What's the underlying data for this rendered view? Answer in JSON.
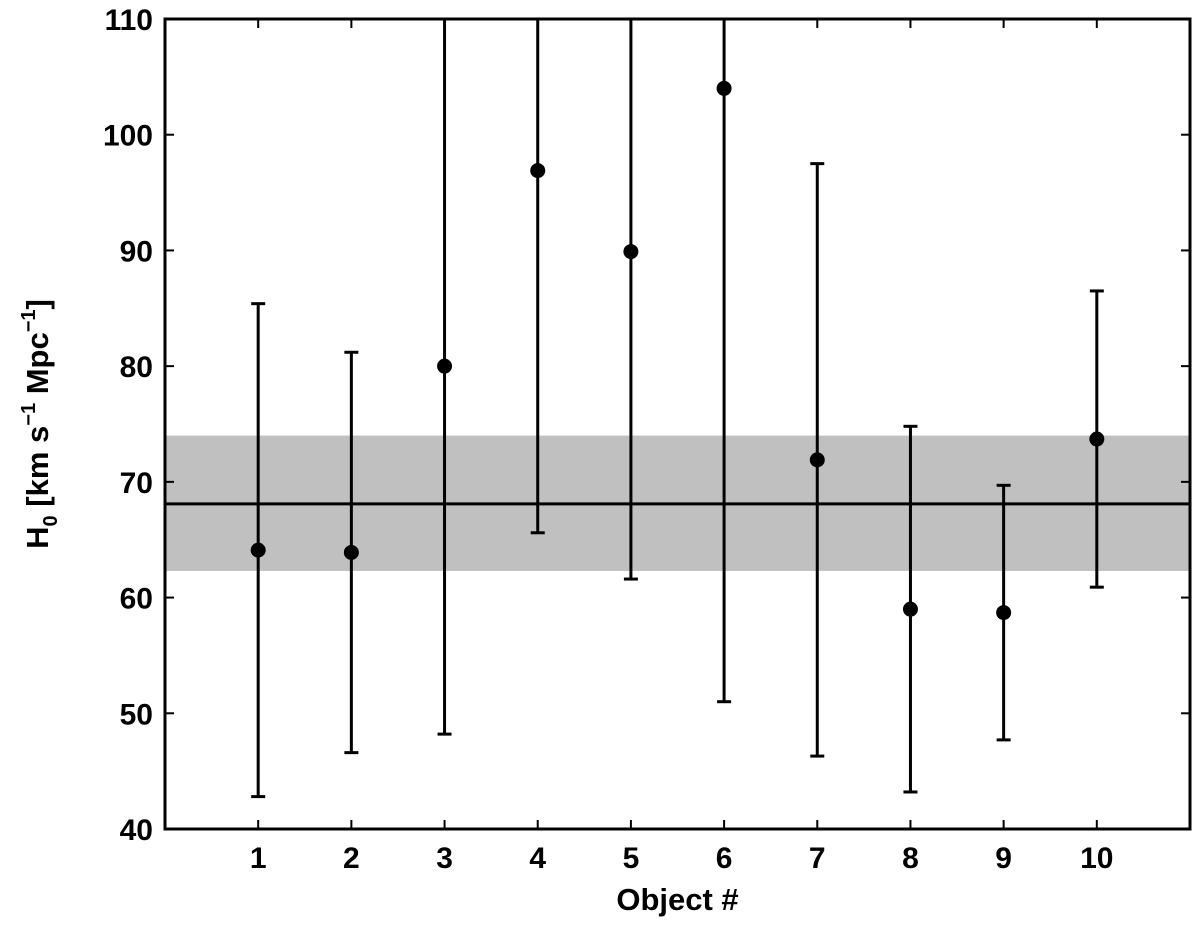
{
  "chart_data": {
    "type": "scatter",
    "xlabel": "Object #",
    "ylabel": {
      "symbol": "H",
      "subscript": "0",
      "unit_open": " [km s",
      "exp1": "−1",
      "unit_mid": " Mpc",
      "exp2": "−1",
      "unit_close": "]"
    },
    "xlim": [
      0,
      11
    ],
    "ylim": [
      40,
      110
    ],
    "xticks": [
      1,
      2,
      3,
      4,
      5,
      6,
      7,
      8,
      9,
      10
    ],
    "yticks": [
      40,
      50,
      60,
      70,
      80,
      90,
      100,
      110
    ],
    "grid": false,
    "points": [
      {
        "x": 1,
        "y": 64.1,
        "low": 42.8,
        "high": 85.4
      },
      {
        "x": 2,
        "y": 63.9,
        "low": 46.6,
        "high": 81.2
      },
      {
        "x": 3,
        "y": 80.0,
        "low": 48.2,
        "high": 110
      },
      {
        "x": 4,
        "y": 96.9,
        "low": 65.6,
        "high": 110
      },
      {
        "x": 5,
        "y": 89.9,
        "low": 61.6,
        "high": 110
      },
      {
        "x": 6,
        "y": 104.0,
        "low": 51.0,
        "high": 110
      },
      {
        "x": 7,
        "y": 71.9,
        "low": 46.3,
        "high": 97.5
      },
      {
        "x": 8,
        "y": 59.0,
        "low": 43.2,
        "high": 74.8
      },
      {
        "x": 9,
        "y": 58.7,
        "low": 47.7,
        "high": 69.7
      },
      {
        "x": 10,
        "y": 73.7,
        "low": 60.9,
        "high": 86.5
      }
    ],
    "reference_line": {
      "y": 68.1
    },
    "reference_band": {
      "low": 62.3,
      "high": 74.0
    },
    "colors": {
      "points": "#000000",
      "band": "#c0c0c0",
      "line": "#000000"
    }
  }
}
